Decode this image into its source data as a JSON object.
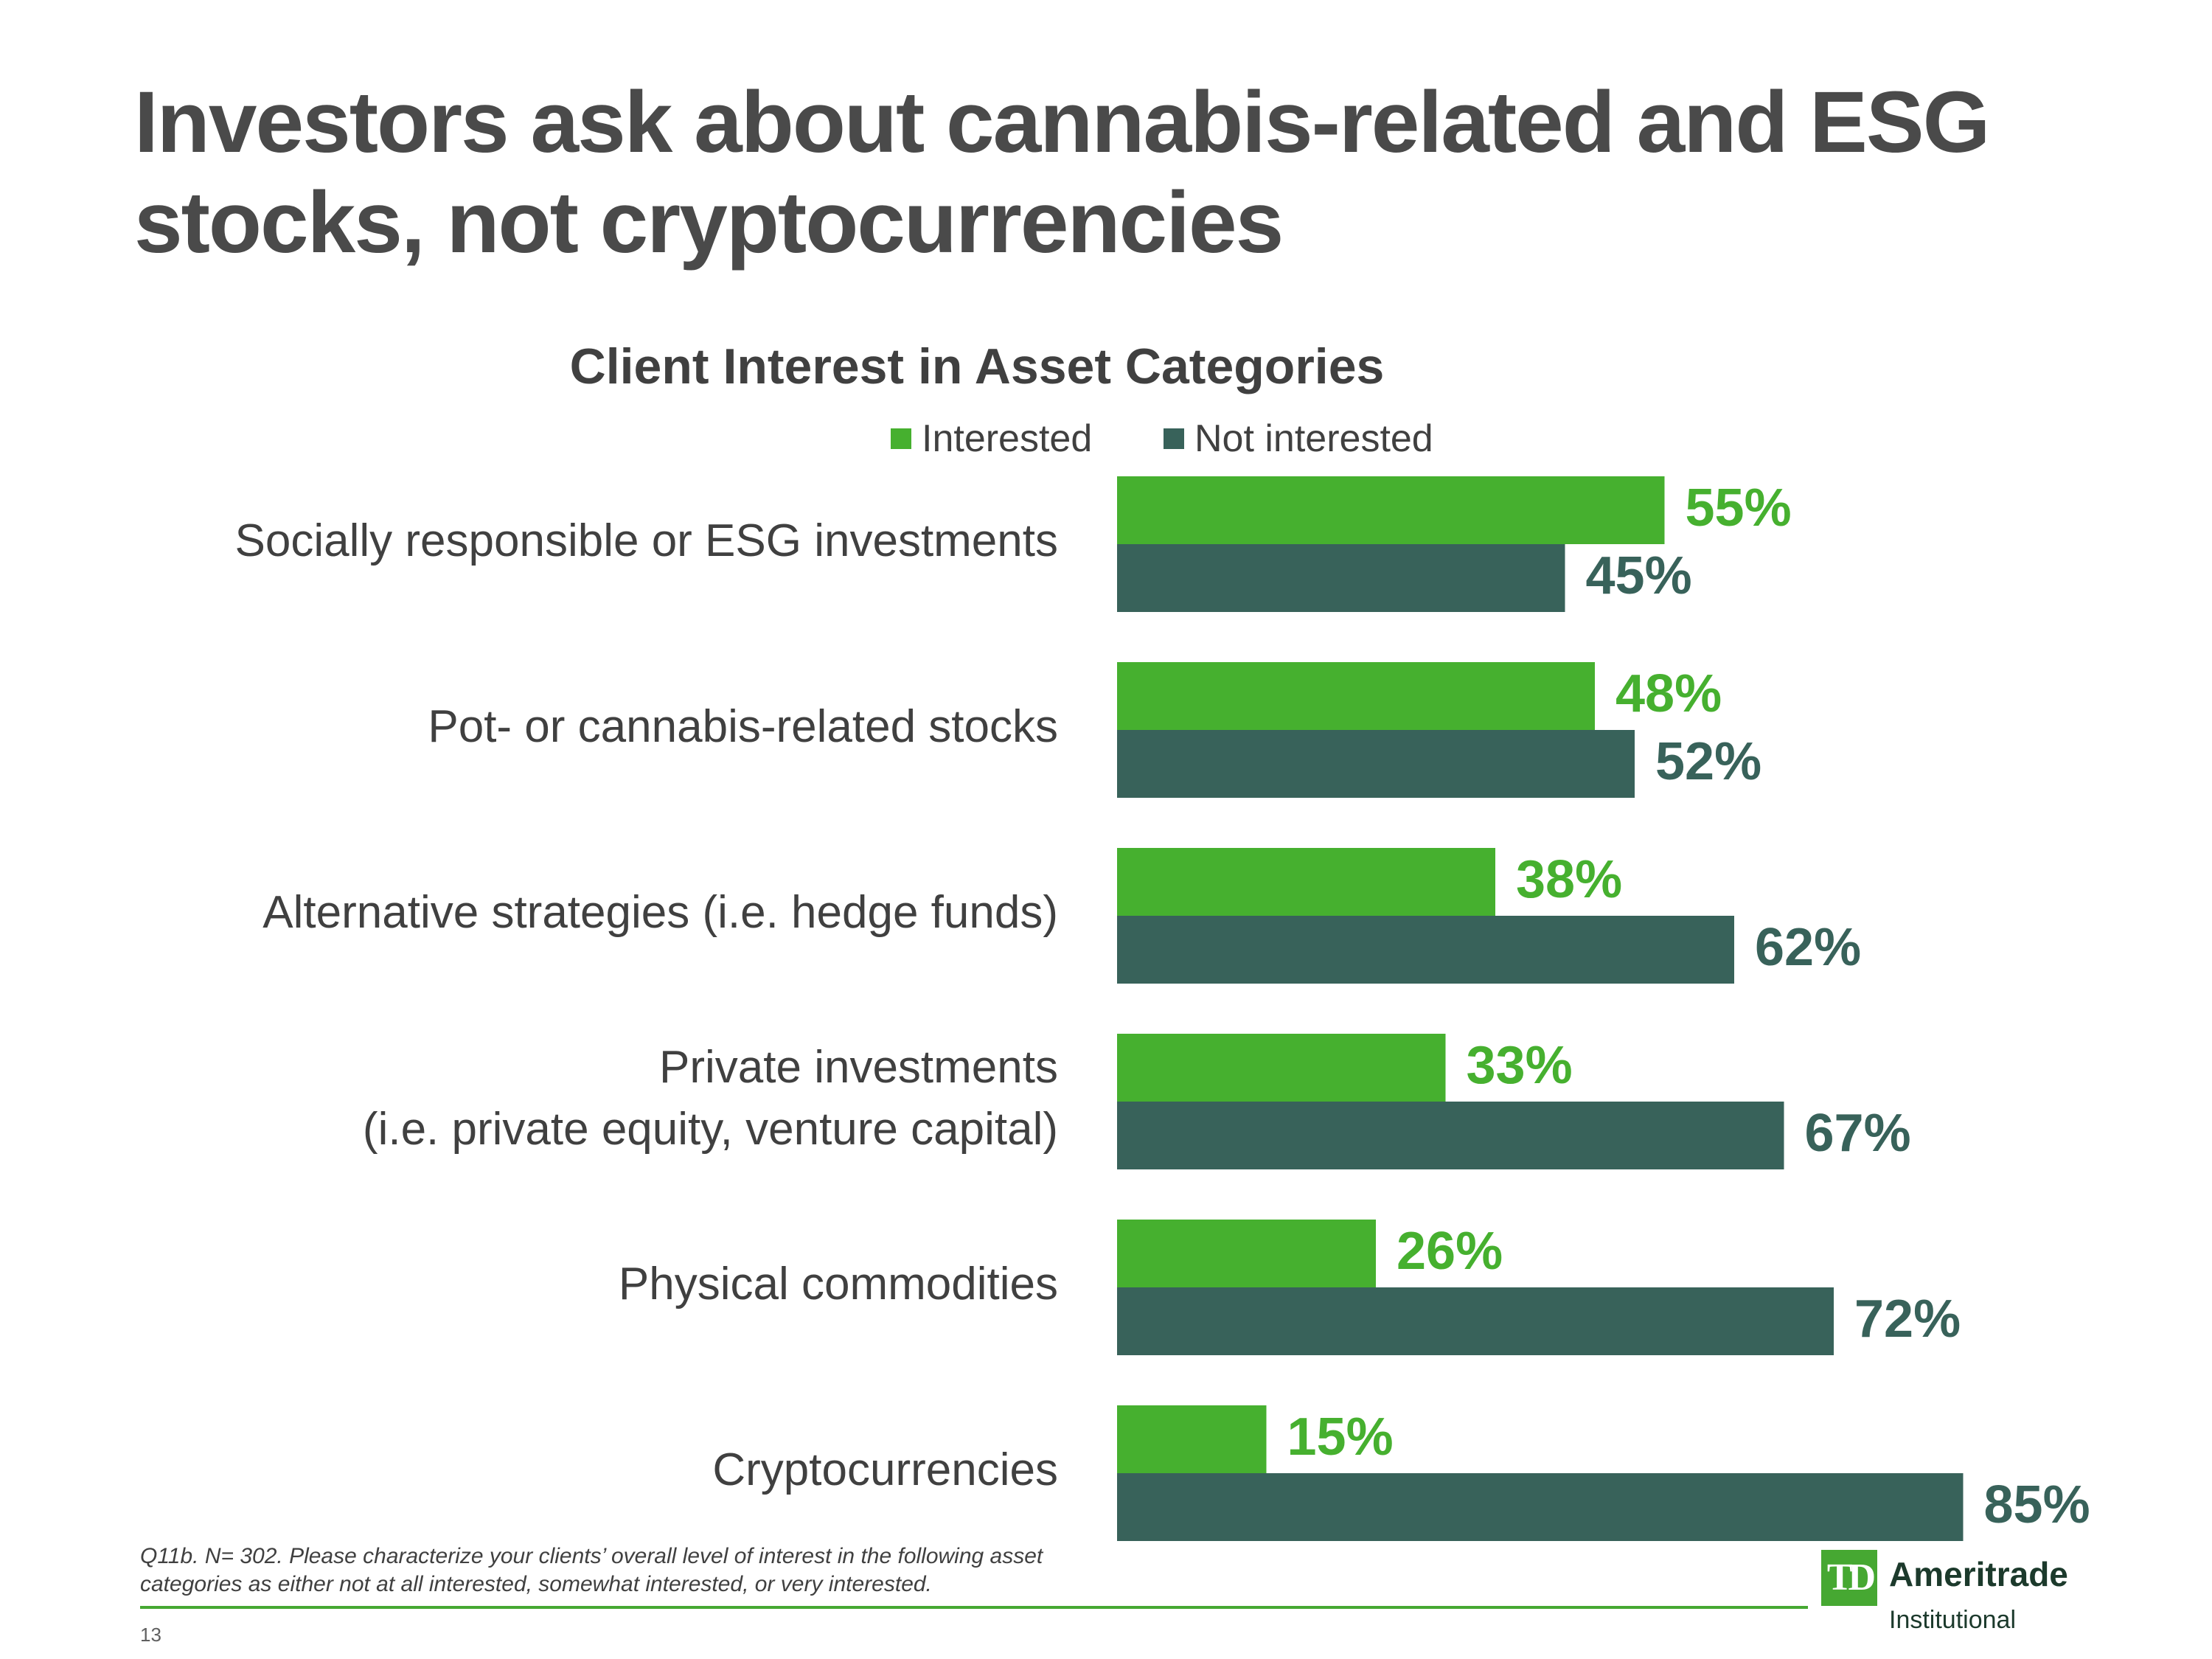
{
  "slide": {
    "title_line1": "Investors ask about cannabis-related and ESG",
    "title_line2": "stocks, not cryptocurrencies",
    "footnote_line1": "Q11b. N= 302. Please characterize your clients’ overall level of interest in the following asset",
    "footnote_line2": "categories as either not at all interested, somewhat interested, or very interested.",
    "page_number": "13"
  },
  "logo": {
    "mark": "TD",
    "name": "Ameritrade",
    "sub": "Institutional"
  },
  "colors": {
    "interested": "#46b02f",
    "not_interested": "#38625a",
    "accent": "#46a832"
  },
  "chart_data": {
    "type": "bar",
    "orientation": "horizontal",
    "title": "Client Interest in Asset Categories",
    "legend_placement": "top",
    "categories": [
      [
        "Socially responsible or ESG investments"
      ],
      [
        "Pot- or cannabis-related stocks"
      ],
      [
        "Alternative strategies (i.e. hedge funds)"
      ],
      [
        "Private investments",
        "(i.e. private equity, venture capital)"
      ],
      [
        "Physical commodities"
      ],
      [
        "Cryptocurrencies"
      ]
    ],
    "series": [
      {
        "name": "Interested",
        "values": [
          55,
          48,
          38,
          33,
          26,
          15
        ],
        "labels": [
          "55%",
          "48%",
          "38%",
          "33%",
          "26%",
          "15%"
        ]
      },
      {
        "name": "Not interested",
        "values": [
          45,
          52,
          62,
          67,
          72,
          85
        ],
        "labels": [
          "45%",
          "52%",
          "62%",
          "67%",
          "72%",
          "85%"
        ]
      }
    ],
    "xlim": [
      0,
      100
    ],
    "grid": false,
    "axes_visible": false
  }
}
